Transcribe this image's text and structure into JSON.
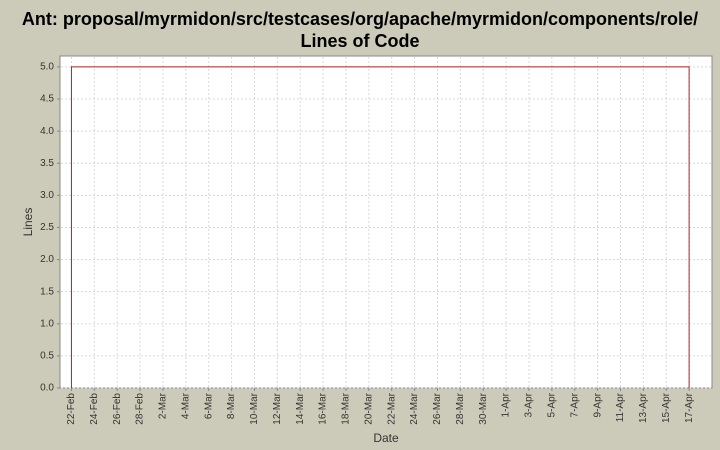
{
  "chart_data": {
    "type": "line",
    "title": [
      "Ant: proposal/myrmidon/src/testcases/org/apache/myrmidon/components/role/",
      "Lines of Code"
    ],
    "x_label": "Date",
    "y_label": "Lines",
    "x": [
      "22-Feb",
      "22-Feb",
      "17-Apr",
      "17-Apr"
    ],
    "series": [
      {
        "name": "Lines",
        "color": "#b22222",
        "values": [
          0,
          5,
          5,
          0
        ]
      }
    ],
    "xlim": [
      "21-Feb",
      "19-Apr"
    ],
    "xticks": [
      "22-Feb",
      "24-Feb",
      "26-Feb",
      "28-Feb",
      "2-Mar",
      "4-Mar",
      "6-Mar",
      "8-Mar",
      "10-Mar",
      "12-Mar",
      "14-Mar",
      "16-Mar",
      "18-Mar",
      "20-Mar",
      "22-Mar",
      "24-Mar",
      "26-Mar",
      "28-Mar",
      "30-Mar",
      "1-Apr",
      "3-Apr",
      "5-Apr",
      "7-Apr",
      "9-Apr",
      "11-Apr",
      "13-Apr",
      "15-Apr",
      "17-Apr"
    ],
    "ylim": [
      0,
      5.17
    ],
    "yticks": [
      {
        "value": 0,
        "label": "0.0"
      },
      {
        "value": 0.5,
        "label": "0.5"
      },
      {
        "value": 1,
        "label": "1.0"
      },
      {
        "value": 1.5,
        "label": "1.5"
      },
      {
        "value": 2,
        "label": "2.0"
      },
      {
        "value": 2.5,
        "label": "2.5"
      },
      {
        "value": 3,
        "label": "3.0"
      },
      {
        "value": 3.5,
        "label": "3.5"
      },
      {
        "value": 4,
        "label": "4.0"
      },
      {
        "value": 4.5,
        "label": "4.5"
      },
      {
        "value": 5,
        "label": "5.0"
      }
    ],
    "grid": true
  }
}
